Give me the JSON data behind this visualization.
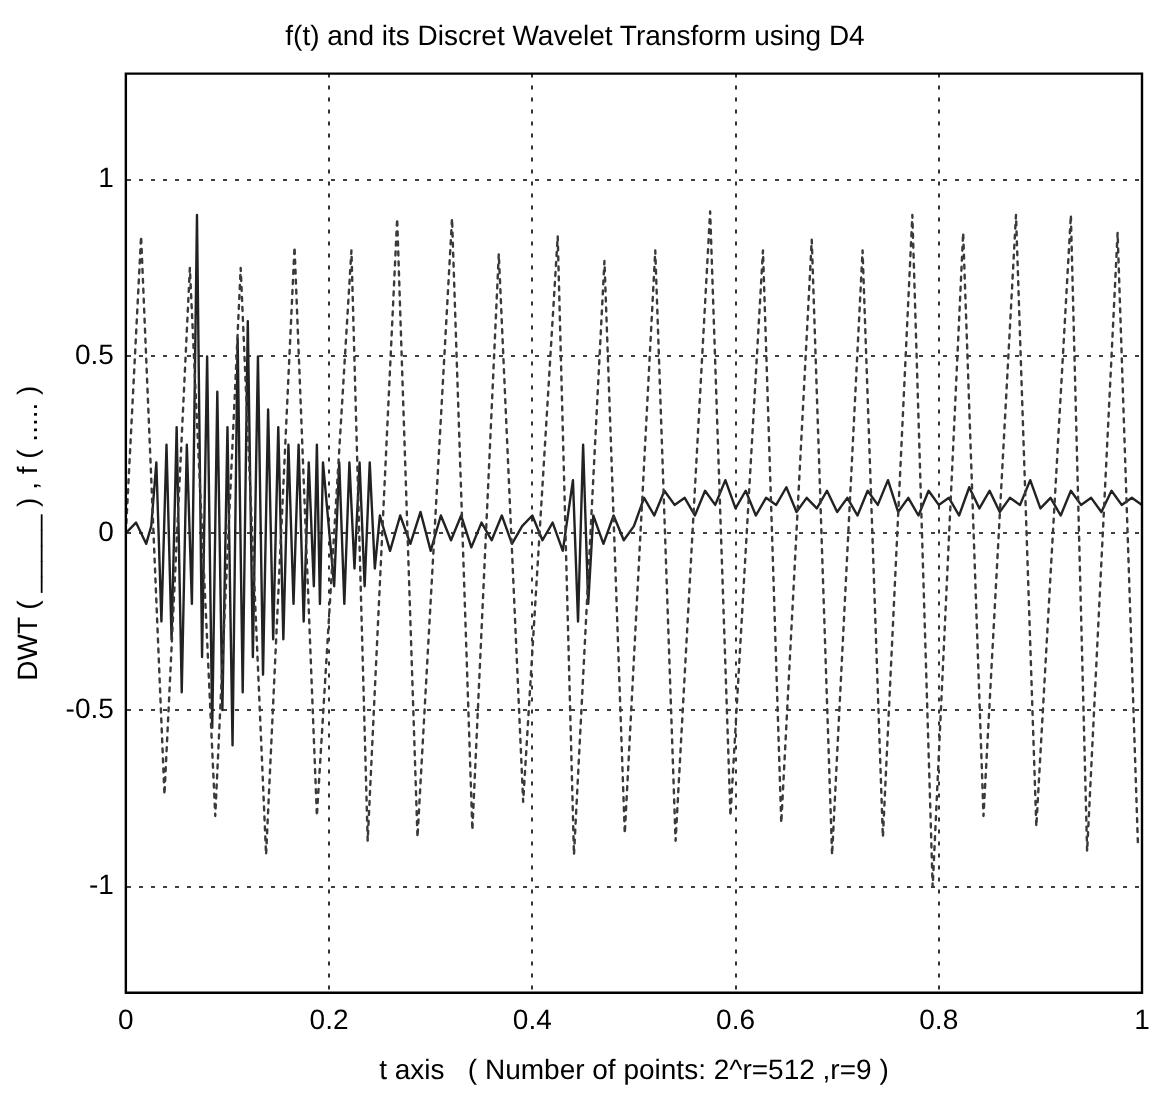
{
  "chart_data": {
    "type": "line",
    "title": "f(t) and its Discret Wavelet Transform using D4",
    "xlabel": "t axis   ( Number of points: 2^r=512 ,r=9 )",
    "ylabel": "DWT ( _____ ) , f ( ..... )",
    "xlim": [
      0,
      1
    ],
    "ylim": [
      -1.3,
      1.3
    ],
    "xticks": [
      0,
      0.2,
      0.4,
      0.6,
      0.8,
      1
    ],
    "yticks": [
      -1,
      -0.5,
      0,
      0.5,
      1
    ],
    "grid": true,
    "legend": false,
    "series": [
      {
        "color": "#3a3a3a",
        "line_style": "dotted",
        "x": [
          0,
          0.015,
          0.038,
          0.063,
          0.088,
          0.113,
          0.138,
          0.166,
          0.188,
          0.222,
          0.238,
          0.267,
          0.287,
          0.321,
          0.341,
          0.367,
          0.391,
          0.425,
          0.441,
          0.471,
          0.491,
          0.521,
          0.541,
          0.575,
          0.595,
          0.627,
          0.645,
          0.675,
          0.695,
          0.725,
          0.745,
          0.774,
          0.794,
          0.824,
          0.844,
          0.876,
          0.896,
          0.93,
          0.946,
          0.976,
          0.996
        ],
        "values": [
          0,
          0.84,
          -0.74,
          0.75,
          -0.8,
          0.75,
          -0.91,
          0.81,
          -0.8,
          0.8,
          -0.87,
          0.89,
          -0.86,
          0.89,
          -0.84,
          0.79,
          -0.76,
          0.84,
          -0.91,
          0.77,
          -0.85,
          0.8,
          -0.87,
          0.91,
          -0.8,
          0.8,
          -0.82,
          0.83,
          -0.91,
          0.8,
          -0.86,
          0.9,
          -1.0,
          0.85,
          -0.8,
          0.9,
          -0.83,
          0.9,
          -0.9,
          0.85,
          -0.88
        ]
      },
      {
        "color": "#222222",
        "line_style": "solid",
        "x": [
          0,
          0.01,
          0.02,
          0.025,
          0.03,
          0.035,
          0.04,
          0.045,
          0.05,
          0.055,
          0.06,
          0.065,
          0.07,
          0.075,
          0.08,
          0.085,
          0.09,
          0.095,
          0.1,
          0.105,
          0.11,
          0.115,
          0.12,
          0.125,
          0.13,
          0.135,
          0.14,
          0.145,
          0.15,
          0.155,
          0.16,
          0.165,
          0.17,
          0.175,
          0.18,
          0.185,
          0.188,
          0.191,
          0.194,
          0.205,
          0.21,
          0.215,
          0.22,
          0.225,
          0.23,
          0.235,
          0.24,
          0.245,
          0.25,
          0.26,
          0.27,
          0.28,
          0.29,
          0.3,
          0.31,
          0.32,
          0.33,
          0.34,
          0.35,
          0.36,
          0.37,
          0.38,
          0.39,
          0.4,
          0.41,
          0.42,
          0.43,
          0.44,
          0.445,
          0.45,
          0.455,
          0.46,
          0.47,
          0.48,
          0.49,
          0.5,
          0.51,
          0.52,
          0.53,
          0.54,
          0.55,
          0.56,
          0.57,
          0.58,
          0.59,
          0.6,
          0.61,
          0.62,
          0.63,
          0.64,
          0.65,
          0.66,
          0.67,
          0.68,
          0.69,
          0.7,
          0.71,
          0.72,
          0.73,
          0.74,
          0.75,
          0.76,
          0.77,
          0.78,
          0.79,
          0.8,
          0.81,
          0.82,
          0.83,
          0.84,
          0.85,
          0.86,
          0.87,
          0.88,
          0.89,
          0.9,
          0.91,
          0.92,
          0.93,
          0.94,
          0.95,
          0.96,
          0.97,
          0.98,
          0.99,
          1
        ],
        "values": [
          0,
          0.03,
          -0.03,
          0.02,
          0.2,
          -0.25,
          0.25,
          -0.3,
          0.3,
          -0.45,
          0.25,
          -0.2,
          0.9,
          -0.35,
          0.5,
          -0.55,
          0.4,
          -0.5,
          0.3,
          -0.6,
          0.55,
          -0.45,
          0.6,
          -0.35,
          0.5,
          -0.4,
          0.35,
          -0.3,
          0.3,
          -0.3,
          0.25,
          -0.2,
          0.25,
          -0.25,
          0.2,
          -0.15,
          0.25,
          -0.2,
          0.2,
          -0.15,
          0.2,
          -0.2,
          0.2,
          -0.1,
          0.2,
          -0.15,
          0.2,
          -0.1,
          0.05,
          -0.05,
          0.05,
          -0.03,
          0.06,
          -0.05,
          0.05,
          -0.02,
          0.05,
          -0.04,
          0.03,
          -0.02,
          0.05,
          -0.03,
          0.02,
          0.05,
          -0.02,
          0.03,
          -0.05,
          0.15,
          -0.25,
          0.25,
          -0.2,
          0.05,
          -0.03,
          0.05,
          -0.02,
          0.02,
          0.1,
          0.05,
          0.12,
          0.08,
          0.1,
          0.05,
          0.12,
          0.08,
          0.15,
          0.07,
          0.12,
          0.05,
          0.1,
          0.08,
          0.13,
          0.06,
          0.1,
          0.07,
          0.12,
          0.06,
          0.1,
          0.05,
          0.12,
          0.08,
          0.15,
          0.06,
          0.1,
          0.05,
          0.12,
          0.08,
          0.1,
          0.05,
          0.13,
          0.07,
          0.12,
          0.06,
          0.1,
          0.08,
          0.15,
          0.07,
          0.1,
          0.05,
          0.12,
          0.08,
          0.1,
          0.06,
          0.12,
          0.08,
          0.1,
          0.08
        ]
      }
    ]
  }
}
